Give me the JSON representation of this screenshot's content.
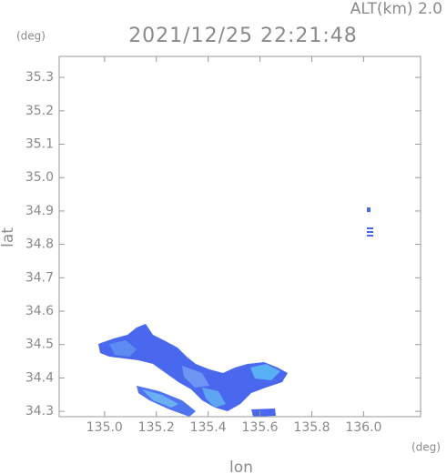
{
  "chart_data": {
    "type": "map",
    "title": "2021/12/25 22:21:48",
    "subtitle": "ALT(km) 2.0",
    "x_label": "lon",
    "y_label": "lat",
    "x_unit": "(deg)",
    "y_unit": "(deg)",
    "xlim": [
      134.825,
      136.22
    ],
    "ylim": [
      34.284,
      35.363
    ],
    "xticks": [
      {
        "value": 135.0,
        "label": "135.0"
      },
      135.2,
      135.4,
      135.6,
      135.8,
      {
        "value": 136.0,
        "label": "136.0"
      }
    ],
    "yticks": [
      35.3,
      35.2,
      35.1,
      {
        "value": 35.0,
        "label": "35.0"
      },
      34.9,
      34.8,
      34.7,
      34.6,
      34.5,
      34.4,
      34.3
    ]
  }
}
